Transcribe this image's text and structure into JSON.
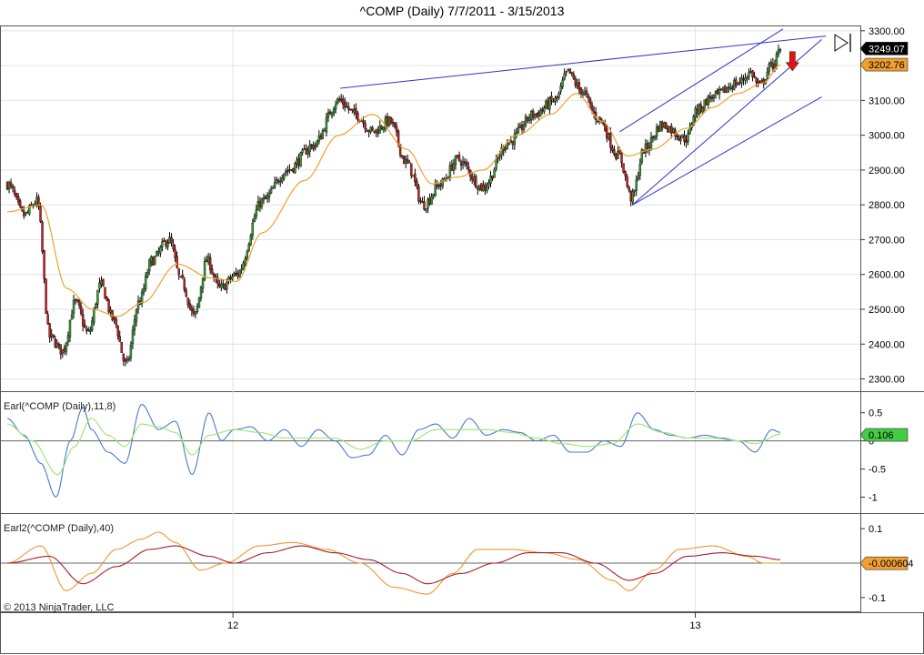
{
  "title": "^COMP (Daily)  7/7/2011 - 3/15/2013",
  "copyright": "© 2013 NinjaTrader, LLC",
  "colors": {
    "candle_up": "#3c9b3c",
    "candle_down": "#c81e1e",
    "price_ma": "#f0a030",
    "trendline": "#3232c8",
    "earl_fast": "#4a78d2",
    "earl_slow": "#9ae66a",
    "earl2_fast": "#f09632",
    "earl2_slow": "#aa1e28",
    "arrow": "#e01414",
    "current_price_badge": "#000000",
    "ma_price_badge": "#f0a030",
    "earl_badge": "#44cc44",
    "earl2_badge": "#f0a030"
  },
  "chart_data": [
    {
      "type": "candlestick",
      "name": "price",
      "y_ticks": [
        "3300.00",
        "3200.00",
        "3100.00",
        "3000.00",
        "2900.00",
        "2800.00",
        "2700.00",
        "2600.00",
        "2500.00",
        "2400.00",
        "2300.00"
      ],
      "ylim": [
        2270,
        3310
      ],
      "x_ticks": [
        "12",
        "13"
      ],
      "x_tick_positions": [
        0.27,
        0.808
      ],
      "current_price": "3249.07",
      "ma_price": "3202.76",
      "anchors": [
        [
          0,
          2860
        ],
        [
          0.02,
          2770
        ],
        [
          0.035,
          2810
        ],
        [
          0.05,
          2420
        ],
        [
          0.065,
          2380
        ],
        [
          0.08,
          2520
        ],
        [
          0.095,
          2430
        ],
        [
          0.11,
          2570
        ],
        [
          0.125,
          2470
        ],
        [
          0.14,
          2340
        ],
        [
          0.155,
          2520
        ],
        [
          0.17,
          2640
        ],
        [
          0.19,
          2700
        ],
        [
          0.205,
          2580
        ],
        [
          0.22,
          2480
        ],
        [
          0.235,
          2640
        ],
        [
          0.25,
          2560
        ],
        [
          0.27,
          2600
        ],
        [
          0.3,
          2810
        ],
        [
          0.33,
          2900
        ],
        [
          0.36,
          2970
        ],
        [
          0.39,
          3100
        ],
        [
          0.41,
          3060
        ],
        [
          0.43,
          3010
        ],
        [
          0.45,
          3040
        ],
        [
          0.47,
          2920
        ],
        [
          0.49,
          2800
        ],
        [
          0.51,
          2860
        ],
        [
          0.53,
          2930
        ],
        [
          0.56,
          2850
        ],
        [
          0.59,
          2980
        ],
        [
          0.62,
          3060
        ],
        [
          0.645,
          3100
        ],
        [
          0.66,
          3180
        ],
        [
          0.675,
          3130
        ],
        [
          0.695,
          3050
        ],
        [
          0.72,
          2940
        ],
        [
          0.735,
          2820
        ],
        [
          0.75,
          2960
        ],
        [
          0.77,
          3030
        ],
        [
          0.8,
          2990
        ],
        [
          0.81,
          3070
        ],
        [
          0.83,
          3110
        ],
        [
          0.86,
          3150
        ],
        [
          0.875,
          3180
        ],
        [
          0.885,
          3140
        ],
        [
          0.9,
          3200
        ],
        [
          0.91,
          3240
        ]
      ],
      "ma_anchors": [
        [
          0,
          2780
        ],
        [
          0.04,
          2800
        ],
        [
          0.07,
          2560
        ],
        [
          0.1,
          2500
        ],
        [
          0.13,
          2480
        ],
        [
          0.16,
          2520
        ],
        [
          0.2,
          2630
        ],
        [
          0.24,
          2590
        ],
        [
          0.27,
          2580
        ],
        [
          0.3,
          2720
        ],
        [
          0.35,
          2870
        ],
        [
          0.39,
          3000
        ],
        [
          0.43,
          3060
        ],
        [
          0.47,
          2960
        ],
        [
          0.5,
          2860
        ],
        [
          0.53,
          2880
        ],
        [
          0.56,
          2900
        ],
        [
          0.6,
          3000
        ],
        [
          0.64,
          3060
        ],
        [
          0.67,
          3120
        ],
        [
          0.7,
          3040
        ],
        [
          0.73,
          2940
        ],
        [
          0.76,
          2960
        ],
        [
          0.8,
          3020
        ],
        [
          0.83,
          3080
        ],
        [
          0.86,
          3120
        ],
        [
          0.89,
          3150
        ],
        [
          0.91,
          3202
        ]
      ],
      "trendlines": [
        [
          [
            0.395,
            3135
          ],
          [
            0.96,
            3285
          ]
        ],
        [
          [
            0.72,
            3010
          ],
          [
            0.91,
            3305
          ]
        ],
        [
          [
            0.735,
            2800
          ],
          [
            0.955,
            3275
          ]
        ],
        [
          [
            0.735,
            2800
          ],
          [
            0.955,
            3110
          ]
        ]
      ],
      "signal": "sell"
    },
    {
      "type": "line",
      "name": "Earl(^COMP (Daily),11,8)",
      "y_ticks": [
        "0.5",
        "0",
        "-0.5",
        "-1"
      ],
      "ylim": [
        -1.25,
        0.85
      ],
      "current_value": "0.106",
      "series": [
        {
          "name": "fast",
          "anchors": [
            [
              0,
              0.4
            ],
            [
              0.02,
              0.1
            ],
            [
              0.04,
              -0.4
            ],
            [
              0.058,
              -1.0
            ],
            [
              0.075,
              0.0
            ],
            [
              0.09,
              0.6
            ],
            [
              0.1,
              0.2
            ],
            [
              0.12,
              -0.2
            ],
            [
              0.14,
              -0.4
            ],
            [
              0.16,
              0.65
            ],
            [
              0.18,
              0.2
            ],
            [
              0.2,
              0.35
            ],
            [
              0.22,
              -0.6
            ],
            [
              0.24,
              0.5
            ],
            [
              0.255,
              0.0
            ],
            [
              0.27,
              0.2
            ],
            [
              0.29,
              0.25
            ],
            [
              0.31,
              0.0
            ],
            [
              0.33,
              0.2
            ],
            [
              0.35,
              -0.1
            ],
            [
              0.37,
              0.2
            ],
            [
              0.39,
              0.0
            ],
            [
              0.41,
              -0.3
            ],
            [
              0.43,
              -0.25
            ],
            [
              0.45,
              0.1
            ],
            [
              0.47,
              -0.25
            ],
            [
              0.49,
              0.2
            ],
            [
              0.51,
              0.3
            ],
            [
              0.53,
              0.05
            ],
            [
              0.55,
              0.4
            ],
            [
              0.57,
              0.1
            ],
            [
              0.59,
              0.2
            ],
            [
              0.61,
              0.15
            ],
            [
              0.63,
              0.0
            ],
            [
              0.65,
              0.1
            ],
            [
              0.67,
              -0.2
            ],
            [
              0.69,
              -0.2
            ],
            [
              0.71,
              0.0
            ],
            [
              0.73,
              -0.1
            ],
            [
              0.75,
              0.5
            ],
            [
              0.77,
              0.2
            ],
            [
              0.79,
              0.1
            ],
            [
              0.81,
              0.05
            ],
            [
              0.83,
              0.1
            ],
            [
              0.85,
              0.05
            ],
            [
              0.87,
              0.0
            ],
            [
              0.89,
              -0.2
            ],
            [
              0.91,
              0.2
            ],
            [
              0.92,
              0.15
            ]
          ]
        },
        {
          "name": "slow",
          "anchors": [
            [
              0,
              0.3
            ],
            [
              0.03,
              0.0
            ],
            [
              0.06,
              -0.6
            ],
            [
              0.08,
              -0.1
            ],
            [
              0.1,
              0.4
            ],
            [
              0.12,
              0.1
            ],
            [
              0.14,
              -0.1
            ],
            [
              0.16,
              0.3
            ],
            [
              0.18,
              0.25
            ],
            [
              0.2,
              0.15
            ],
            [
              0.22,
              -0.25
            ],
            [
              0.24,
              0.1
            ],
            [
              0.27,
              0.2
            ],
            [
              0.3,
              0.15
            ],
            [
              0.33,
              0.05
            ],
            [
              0.36,
              0.05
            ],
            [
              0.39,
              0.05
            ],
            [
              0.42,
              -0.15
            ],
            [
              0.45,
              0.0
            ],
            [
              0.48,
              0.0
            ],
            [
              0.51,
              0.2
            ],
            [
              0.54,
              0.2
            ],
            [
              0.57,
              0.2
            ],
            [
              0.6,
              0.15
            ],
            [
              0.63,
              0.05
            ],
            [
              0.66,
              -0.05
            ],
            [
              0.69,
              -0.1
            ],
            [
              0.72,
              -0.05
            ],
            [
              0.75,
              0.3
            ],
            [
              0.78,
              0.15
            ],
            [
              0.81,
              0.05
            ],
            [
              0.84,
              0.05
            ],
            [
              0.87,
              0.0
            ],
            [
              0.89,
              -0.05
            ],
            [
              0.92,
              0.12
            ]
          ]
        }
      ]
    },
    {
      "type": "line",
      "name": "Earl2(^COMP (Daily),40)",
      "y_ticks": [
        "0.1",
        "0",
        "-0.1"
      ],
      "ylim": [
        -0.14,
        0.14
      ],
      "current_value": "-0.000604",
      "series": [
        {
          "name": "fast",
          "anchors": [
            [
              0,
              0.0
            ],
            [
              0.04,
              0.05
            ],
            [
              0.07,
              -0.08
            ],
            [
              0.1,
              -0.03
            ],
            [
              0.13,
              0.04
            ],
            [
              0.16,
              0.07
            ],
            [
              0.18,
              0.09
            ],
            [
              0.2,
              0.06
            ],
            [
              0.23,
              -0.02
            ],
            [
              0.26,
              0.0
            ],
            [
              0.3,
              0.05
            ],
            [
              0.34,
              0.06
            ],
            [
              0.38,
              0.04
            ],
            [
              0.42,
              0.0
            ],
            [
              0.46,
              -0.07
            ],
            [
              0.5,
              -0.09
            ],
            [
              0.53,
              -0.03
            ],
            [
              0.56,
              0.04
            ],
            [
              0.6,
              0.04
            ],
            [
              0.64,
              0.03
            ],
            [
              0.68,
              0.01
            ],
            [
              0.72,
              -0.05
            ],
            [
              0.74,
              -0.08
            ],
            [
              0.77,
              -0.02
            ],
            [
              0.8,
              0.04
            ],
            [
              0.84,
              0.05
            ],
            [
              0.88,
              0.02
            ],
            [
              0.9,
              0.0
            ],
            [
              0.92,
              0.0
            ]
          ]
        },
        {
          "name": "slow",
          "anchors": [
            [
              0,
              0.0
            ],
            [
              0.05,
              0.02
            ],
            [
              0.09,
              -0.06
            ],
            [
              0.13,
              -0.01
            ],
            [
              0.17,
              0.04
            ],
            [
              0.2,
              0.05
            ],
            [
              0.24,
              0.02
            ],
            [
              0.27,
              0.0
            ],
            [
              0.31,
              0.03
            ],
            [
              0.35,
              0.05
            ],
            [
              0.39,
              0.03
            ],
            [
              0.43,
              0.01
            ],
            [
              0.47,
              -0.03
            ],
            [
              0.5,
              -0.06
            ],
            [
              0.54,
              -0.03
            ],
            [
              0.58,
              0.0
            ],
            [
              0.62,
              0.03
            ],
            [
              0.66,
              0.03
            ],
            [
              0.7,
              0.0
            ],
            [
              0.74,
              -0.05
            ],
            [
              0.77,
              -0.03
            ],
            [
              0.81,
              0.02
            ],
            [
              0.85,
              0.03
            ],
            [
              0.89,
              0.02
            ],
            [
              0.92,
              0.01
            ]
          ]
        }
      ]
    }
  ]
}
